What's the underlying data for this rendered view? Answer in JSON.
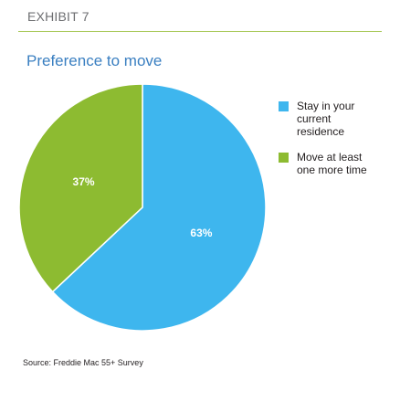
{
  "header": {
    "exhibit": "EXHIBIT 7"
  },
  "source": "Source: Freddie Mac 55+ Survey",
  "chart_data": {
    "type": "pie",
    "title": "Preference to move",
    "slices": [
      {
        "name": "Stay in your current residence",
        "value": 63,
        "label": "63%",
        "color": "#3eb6ee"
      },
      {
        "name": "Move at least one more time",
        "value": 37,
        "label": "37%",
        "color": "#8dbb31"
      }
    ],
    "start": "12 o'clock",
    "direction": "clockwise",
    "legend_position": "right"
  }
}
